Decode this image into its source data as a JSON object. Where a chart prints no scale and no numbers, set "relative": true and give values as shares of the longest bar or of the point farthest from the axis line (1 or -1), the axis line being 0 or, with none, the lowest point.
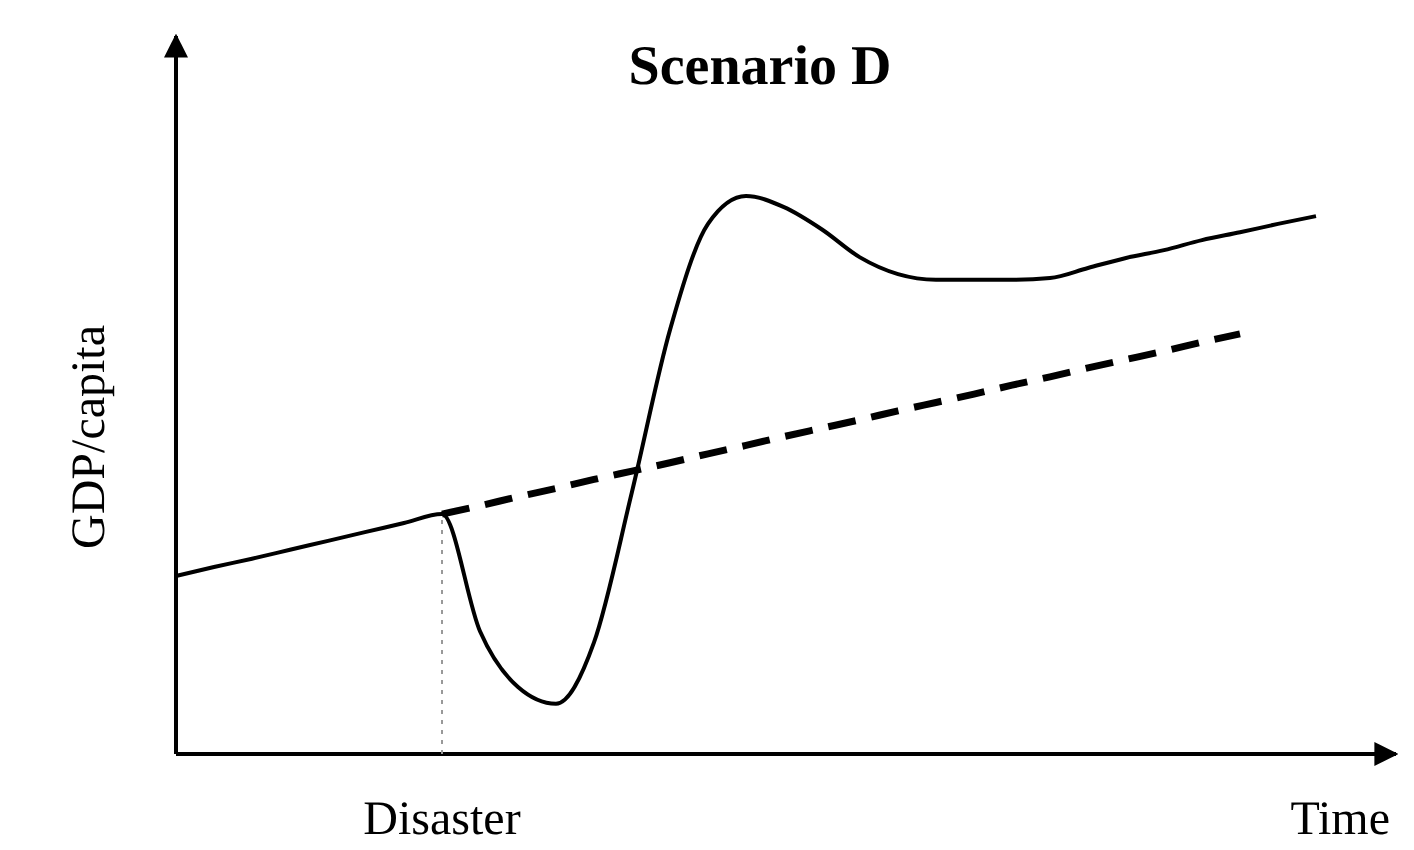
{
  "chart_data": {
    "type": "line",
    "title": "Scenario D",
    "xlabel": "Time",
    "ylabel": "GDP/capita",
    "relative": true,
    "legend": false,
    "grid": false,
    "marker": "none",
    "categories": [
      null,
      null,
      null,
      null,
      null,
      null,
      null,
      null,
      null,
      null,
      null,
      null,
      null,
      null,
      null,
      null,
      null,
      null,
      null,
      null,
      null,
      null,
      null,
      null,
      null,
      null,
      null,
      null,
      null,
      null,
      null
    ],
    "series": [
      {
        "color": "#000000",
        "line_style": "solid",
        "values": [
          0.319,
          0.335,
          0.35,
          0.366,
          0.382,
          0.398,
          0.414,
          0.43,
          0.22,
          0.12,
          0.09,
          0.2,
          0.47,
          0.76,
          0.95,
          1,
          0.98,
          0.94,
          0.89,
          0.86,
          0.85,
          0.85,
          0.85,
          0.853,
          0.871,
          0.889,
          0.903,
          0.921,
          0.935,
          0.95,
          0.964
        ]
      },
      {
        "color": "#000000",
        "line_style": "dashed",
        "values": [
          null,
          null,
          null,
          null,
          null,
          null,
          null,
          0.43,
          0.445,
          0.461,
          0.476,
          0.492,
          0.507,
          0.522,
          0.538,
          0.553,
          0.569,
          0.584,
          0.599,
          0.615,
          0.63,
          0.645,
          0.661,
          0.676,
          0.692,
          0.707,
          0.722,
          0.738,
          0.753,
          null,
          null
        ]
      }
    ],
    "annotations": [
      "Disaster"
    ]
  }
}
